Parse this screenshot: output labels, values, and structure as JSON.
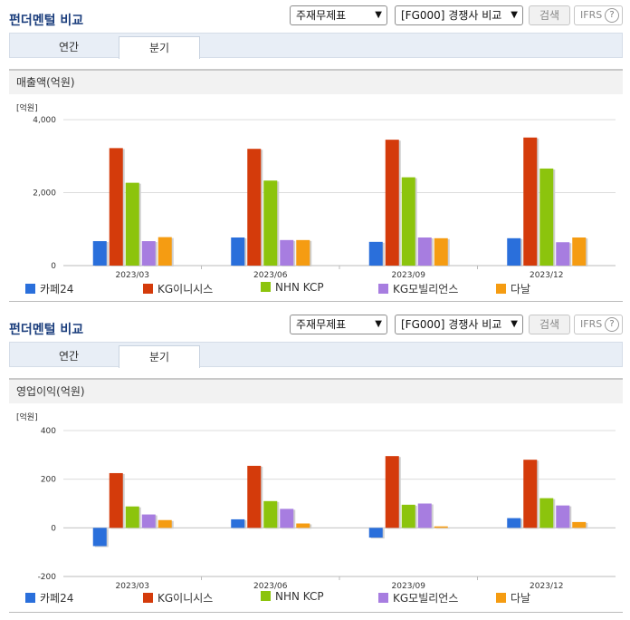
{
  "panels": [
    {
      "title": "펀더멘털 비교",
      "statement_select": "주재무제표",
      "peer_select": "[FG000] 경쟁사 비교",
      "search_label": "검색",
      "ifrs_label": "IFRS",
      "help_label": "?",
      "tabs": [
        {
          "label": "연간"
        },
        {
          "label": "분기"
        }
      ],
      "active_tab": 1,
      "section_title": "매출액(억원)",
      "chart_data": {
        "type": "bar",
        "unit_label": "[억원]",
        "categories": [
          "2023/03",
          "2023/06",
          "2023/09",
          "2023/12"
        ],
        "ylim": [
          0,
          4000
        ],
        "yticks": [
          "0",
          "2,000",
          "4,000"
        ],
        "ytick_values": [
          0,
          2000,
          4000
        ],
        "series": [
          {
            "name": "카페24",
            "color": "#2a6fdb",
            "values": [
              670,
              770,
              650,
              750
            ]
          },
          {
            "name": "KG이니시스",
            "color": "#d43b0b",
            "values": [
              3220,
              3200,
              3450,
              3510
            ]
          },
          {
            "name": "NHN KCP",
            "color": "#8cc40d",
            "values": [
              2270,
              2330,
              2420,
              2660
            ]
          },
          {
            "name": "KG모빌리언스",
            "color": "#a77de0",
            "values": [
              670,
              700,
              770,
              640
            ]
          },
          {
            "name": "다날",
            "color": "#f59c12",
            "values": [
              780,
              700,
              750,
              770
            ]
          }
        ],
        "legend_position": "bottom",
        "grid": true
      }
    },
    {
      "title": "펀더멘털 비교",
      "statement_select": "주재무제표",
      "peer_select": "[FG000] 경쟁사 비교",
      "search_label": "검색",
      "ifrs_label": "IFRS",
      "help_label": "?",
      "tabs": [
        {
          "label": "연간"
        },
        {
          "label": "분기"
        }
      ],
      "active_tab": 1,
      "section_title": "영업이익(억원)",
      "chart_data": {
        "type": "bar",
        "unit_label": "[억원]",
        "categories": [
          "2023/03",
          "2023/06",
          "2023/09",
          "2023/12"
        ],
        "ylim": [
          -200,
          400
        ],
        "yticks": [
          "-200",
          "0",
          "200",
          "400"
        ],
        "ytick_values": [
          -200,
          0,
          200,
          400
        ],
        "series": [
          {
            "name": "카페24",
            "color": "#2a6fdb",
            "values": [
              -75,
              35,
              -40,
              40
            ]
          },
          {
            "name": "KG이니시스",
            "color": "#d43b0b",
            "values": [
              225,
              255,
              295,
              280
            ]
          },
          {
            "name": "NHN KCP",
            "color": "#8cc40d",
            "values": [
              88,
              110,
              95,
              122
            ]
          },
          {
            "name": "KG모빌리언스",
            "color": "#a77de0",
            "values": [
              55,
              78,
              100,
              92
            ]
          },
          {
            "name": "다날",
            "color": "#f59c12",
            "values": [
              32,
              18,
              6,
              24
            ]
          }
        ],
        "legend_position": "bottom",
        "grid": true
      }
    }
  ]
}
